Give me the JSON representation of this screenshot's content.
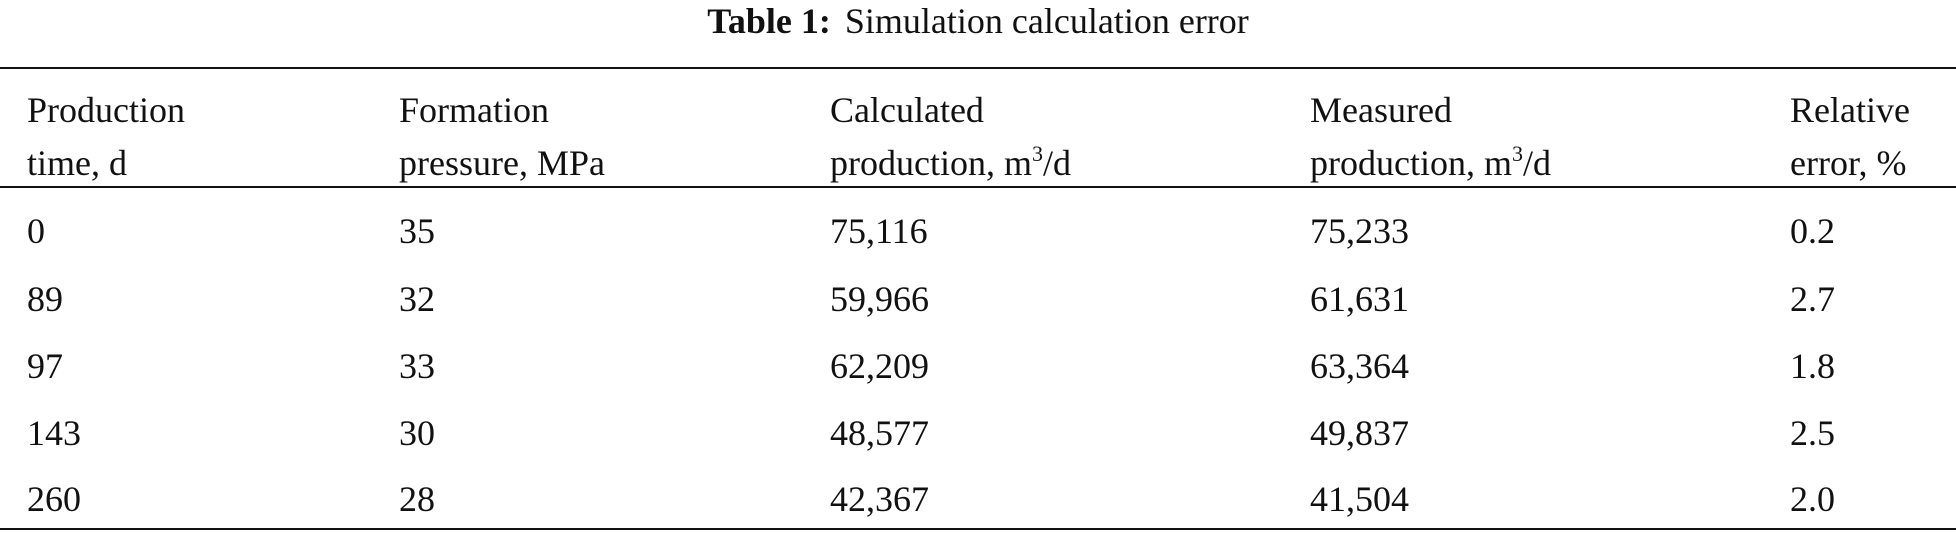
{
  "caption": {
    "label": "Table 1:",
    "text": "Simulation calculation error"
  },
  "table": {
    "header": [
      {
        "line1": "Production",
        "line2": "time, d"
      },
      {
        "line1": "Formation",
        "line2": "pressure, MPa"
      },
      {
        "line1": "Calculated",
        "line2": "production, m",
        "sup": "3",
        "line2_end": "/d"
      },
      {
        "line1": "Measured",
        "line2": "production, m",
        "sup": "3",
        "line2_end": "/d"
      },
      {
        "line1": "Relative",
        "line2": "error, %"
      }
    ],
    "rows": [
      [
        "0",
        "35",
        "75,116",
        "75,233",
        "0.2"
      ],
      [
        "89",
        "32",
        "59,966",
        "61,631",
        "2.7"
      ],
      [
        "97",
        "33",
        "62,209",
        "63,364",
        "1.8"
      ],
      [
        "143",
        "30",
        "48,577",
        "49,837",
        "2.5"
      ],
      [
        "260",
        "28",
        "42,367",
        "41,504",
        "2.0"
      ]
    ]
  }
}
